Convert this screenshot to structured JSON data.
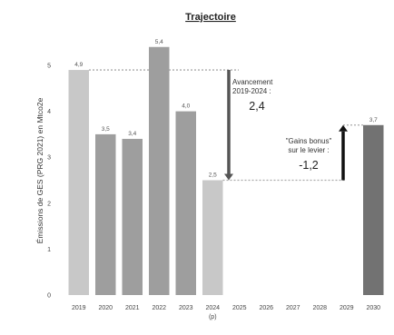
{
  "chart_data": {
    "type": "bar",
    "title": "Trajectoire",
    "ylabel": "Émissions de GES (PRG 2021) en Mtco2e",
    "xlabel": "",
    "ylim": [
      0,
      5.7
    ],
    "yticks": [
      0,
      1,
      2,
      3,
      4,
      5
    ],
    "grid": false,
    "categories": [
      "2019",
      "2020",
      "2021",
      "2022",
      "2023",
      "2024",
      "2025",
      "2026",
      "2027",
      "2028",
      "2029",
      "2030"
    ],
    "category_sublabels": {
      "2024": "(p)"
    },
    "values": [
      4.9,
      3.5,
      3.4,
      5.4,
      4.0,
      2.5,
      null,
      null,
      null,
      null,
      null,
      3.7
    ],
    "data_labels": [
      "4,9",
      "3,5",
      "3,4",
      "5,4",
      "4,0",
      "2,5",
      "",
      "",
      "",
      "",
      "",
      "3,7"
    ],
    "bar_colors": [
      "#c8c8c8",
      "#9e9e9e",
      "#9e9e9e",
      "#9e9e9e",
      "#9e9e9e",
      "#c8c8c8",
      null,
      null,
      null,
      null,
      null,
      "#727272"
    ],
    "annotations": [
      {
        "lines": [
          "Avancement",
          "2019-2024 :"
        ],
        "value": "2,4",
        "from": 4.9,
        "to": 2.5,
        "arrow": "down",
        "color": "#555555"
      },
      {
        "lines": [
          "\"Gains bonus\"",
          "sur le levier :"
        ],
        "value": "-1,2",
        "from": 2.5,
        "to": 3.7,
        "arrow": "up",
        "color": "#111111"
      }
    ]
  }
}
